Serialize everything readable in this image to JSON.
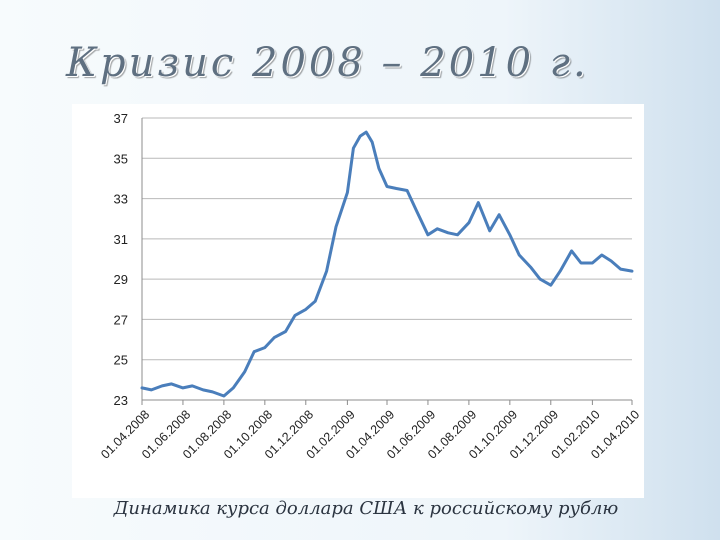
{
  "slide": {
    "title": "Кризис 2008 – 2010 г.",
    "caption": "Динамика курса доллара США к российскому рублю"
  },
  "chart_data": {
    "type": "line",
    "title": "",
    "xlabel": "",
    "ylabel": "",
    "ylim": [
      23,
      37
    ],
    "yticks": [
      "23",
      "25",
      "27",
      "29",
      "31",
      "33",
      "35",
      "37"
    ],
    "x_tick_labels": [
      "01.04.2008",
      "01.06.2008",
      "01.08.2008",
      "01.10.2008",
      "01.12.2008",
      "01.02.2009",
      "01.04.2009",
      "01.06.2009",
      "01.08.2009",
      "01.10.2009",
      "01.12.2009",
      "01.02.2010",
      "01.04.2010"
    ],
    "xlim": [
      "2008-04-01",
      "2010-04-01"
    ],
    "grid": "horizontal",
    "line_color": "#4a7ebb",
    "series": [
      {
        "x": [
          "2008-04-01",
          "2008-04-15",
          "2008-05-01",
          "2008-05-15",
          "2008-06-01",
          "2008-06-15",
          "2008-07-01",
          "2008-07-15",
          "2008-08-01",
          "2008-08-15",
          "2008-09-01",
          "2008-09-15",
          "2008-10-01",
          "2008-10-15",
          "2008-11-01",
          "2008-11-15",
          "2008-12-01",
          "2008-12-15",
          "2009-01-01",
          "2009-01-15",
          "2009-02-01",
          "2009-02-10",
          "2009-02-20",
          "2009-03-01",
          "2009-03-10",
          "2009-03-20",
          "2009-04-01",
          "2009-04-15",
          "2009-05-01",
          "2009-05-15",
          "2009-06-01",
          "2009-06-15",
          "2009-07-01",
          "2009-07-15",
          "2009-08-01",
          "2009-08-15",
          "2009-09-01",
          "2009-09-15",
          "2009-10-01",
          "2009-10-15",
          "2009-11-01",
          "2009-11-15",
          "2009-12-01",
          "2009-12-15",
          "2010-01-01",
          "2010-01-15",
          "2010-02-01",
          "2010-02-15",
          "2010-03-01",
          "2010-03-15",
          "2010-04-01"
        ],
        "y": [
          23.6,
          23.5,
          23.7,
          23.8,
          23.6,
          23.7,
          23.5,
          23.4,
          23.2,
          23.6,
          24.4,
          25.4,
          25.6,
          26.1,
          26.4,
          27.2,
          27.5,
          27.9,
          29.4,
          31.6,
          33.3,
          35.5,
          36.1,
          36.3,
          35.8,
          34.5,
          33.6,
          33.5,
          33.4,
          32.4,
          31.2,
          31.5,
          31.3,
          31.2,
          31.8,
          32.8,
          31.4,
          32.2,
          31.2,
          30.2,
          29.6,
          29.0,
          28.7,
          29.4,
          30.4,
          29.8,
          29.8,
          30.2,
          29.9,
          29.5,
          29.4
        ]
      }
    ]
  }
}
